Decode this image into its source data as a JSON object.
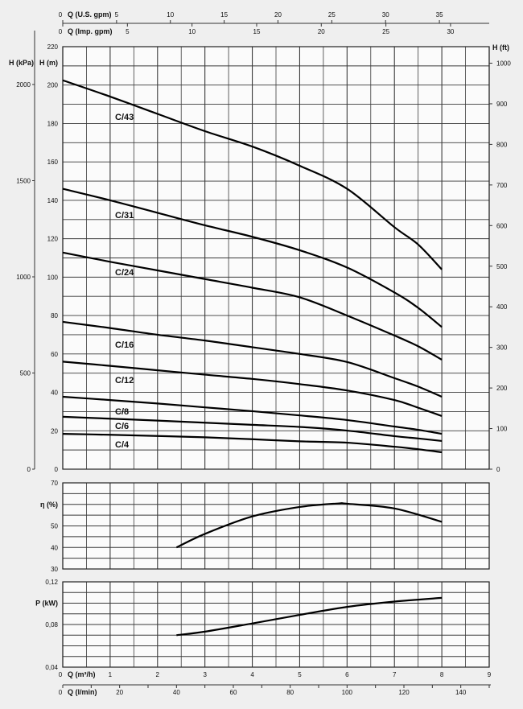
{
  "chart_data": [
    {
      "type": "line",
      "title": "",
      "xlabel": "Q (m³/h)",
      "ylabel": "H (m)",
      "xlim": [
        0,
        9
      ],
      "ylim": [
        0,
        220
      ],
      "grid": true,
      "secondary_y_left": {
        "label": "H (kPa)",
        "ticks": [
          0,
          500,
          1000,
          1500,
          2000
        ]
      },
      "secondary_y_right": {
        "label": "H (ft)",
        "ticks": [
          0,
          100,
          200,
          300,
          400,
          500,
          600,
          700,
          800,
          900,
          1000
        ]
      },
      "secondary_x_top": [
        {
          "label": "Q (U.S. gpm)",
          "ticks": [
            0,
            5,
            10,
            15,
            20,
            25,
            30,
            35
          ]
        },
        {
          "label": "Q (Imp. gpm)",
          "ticks": [
            0,
            5,
            10,
            15,
            20,
            25,
            30
          ]
        }
      ],
      "y_ticks": [
        0,
        20,
        40,
        60,
        80,
        100,
        120,
        140,
        160,
        180,
        200,
        220
      ],
      "series": [
        {
          "name": "C/43",
          "x": [
            0,
            1,
            2,
            3,
            4,
            5,
            6,
            7,
            7.5,
            8
          ],
          "y": [
            202.5,
            194,
            185,
            176,
            168,
            158,
            146,
            126,
            117,
            104
          ]
        },
        {
          "name": "C/31",
          "x": [
            0,
            1,
            2,
            3,
            4,
            5,
            6,
            7,
            7.5,
            8
          ],
          "y": [
            146,
            140,
            133.5,
            127,
            121,
            114,
            105,
            92,
            84,
            74
          ]
        },
        {
          "name": "C/24",
          "x": [
            0,
            1,
            2,
            3,
            4,
            5,
            6,
            7,
            7.5,
            8
          ],
          "y": [
            112.8,
            108,
            103.5,
            99,
            94.5,
            89.5,
            80,
            69.6,
            64,
            57
          ]
        },
        {
          "name": "C/16",
          "x": [
            0,
            1,
            2,
            3,
            4,
            5,
            6,
            7,
            7.5,
            8
          ],
          "y": [
            76.7,
            73.5,
            70,
            67,
            63.5,
            60,
            55.8,
            47.4,
            43,
            37.7
          ]
        },
        {
          "name": "C/12",
          "x": [
            0,
            1,
            2,
            3,
            4,
            5,
            6,
            7,
            7.5,
            8
          ],
          "y": [
            56,
            53.8,
            51.5,
            49.2,
            47,
            44.3,
            41,
            36,
            32,
            27.7
          ]
        },
        {
          "name": "C/8",
          "x": [
            0,
            1,
            2,
            3,
            4,
            5,
            6,
            7,
            7.5,
            8
          ],
          "y": [
            37.7,
            36,
            34.2,
            32.2,
            30.2,
            28,
            25.6,
            22.2,
            20.5,
            18.4
          ]
        },
        {
          "name": "C/6",
          "x": [
            0,
            1,
            2,
            3,
            4,
            5,
            6,
            7,
            7.5,
            8
          ],
          "y": [
            27.3,
            26.3,
            25.3,
            24.2,
            23.1,
            22,
            20.1,
            17.2,
            16,
            14.7
          ]
        },
        {
          "name": "C/4",
          "x": [
            0,
            1,
            2,
            3,
            4,
            5,
            6,
            7,
            7.5,
            8
          ],
          "y": [
            18.4,
            17.9,
            17.3,
            16.6,
            15.6,
            14.5,
            13.8,
            11.7,
            10.4,
            8.8
          ]
        }
      ]
    },
    {
      "type": "line",
      "ylabel": "η (%)",
      "xlim": [
        0,
        9
      ],
      "ylim": [
        30,
        70
      ],
      "grid": true,
      "y_ticks": [
        "30",
        "40",
        "50",
        "70"
      ],
      "series": [
        {
          "name": "efficiency",
          "x": [
            2.4,
            3,
            4,
            5,
            5.8,
            6,
            7,
            8
          ],
          "y": [
            40,
            46.3,
            54.4,
            58.8,
            60.4,
            60.3,
            58.1,
            51.9
          ]
        }
      ]
    },
    {
      "type": "line",
      "ylabel": "P (kW)",
      "xlabel": "Q (m³/h)",
      "xlim": [
        0,
        9
      ],
      "ylim": [
        0.04,
        0.12
      ],
      "grid": true,
      "y_ticks": [
        "0,04",
        "0,08",
        "0,12"
      ],
      "x_ticks": [
        "0",
        "1",
        "2",
        "3",
        "4",
        "5",
        "6",
        "7",
        "8",
        "9"
      ],
      "secondary_x_bottom": {
        "label": "Q (l/min)",
        "ticks": [
          "0",
          "20",
          "40",
          "60",
          "80",
          "100",
          "120",
          "140"
        ]
      },
      "series": [
        {
          "name": "power",
          "x": [
            2.4,
            3,
            4,
            5,
            6,
            7,
            8
          ],
          "y": [
            0.07,
            0.0733,
            0.081,
            0.089,
            0.0965,
            0.1015,
            0.105
          ]
        }
      ]
    }
  ]
}
